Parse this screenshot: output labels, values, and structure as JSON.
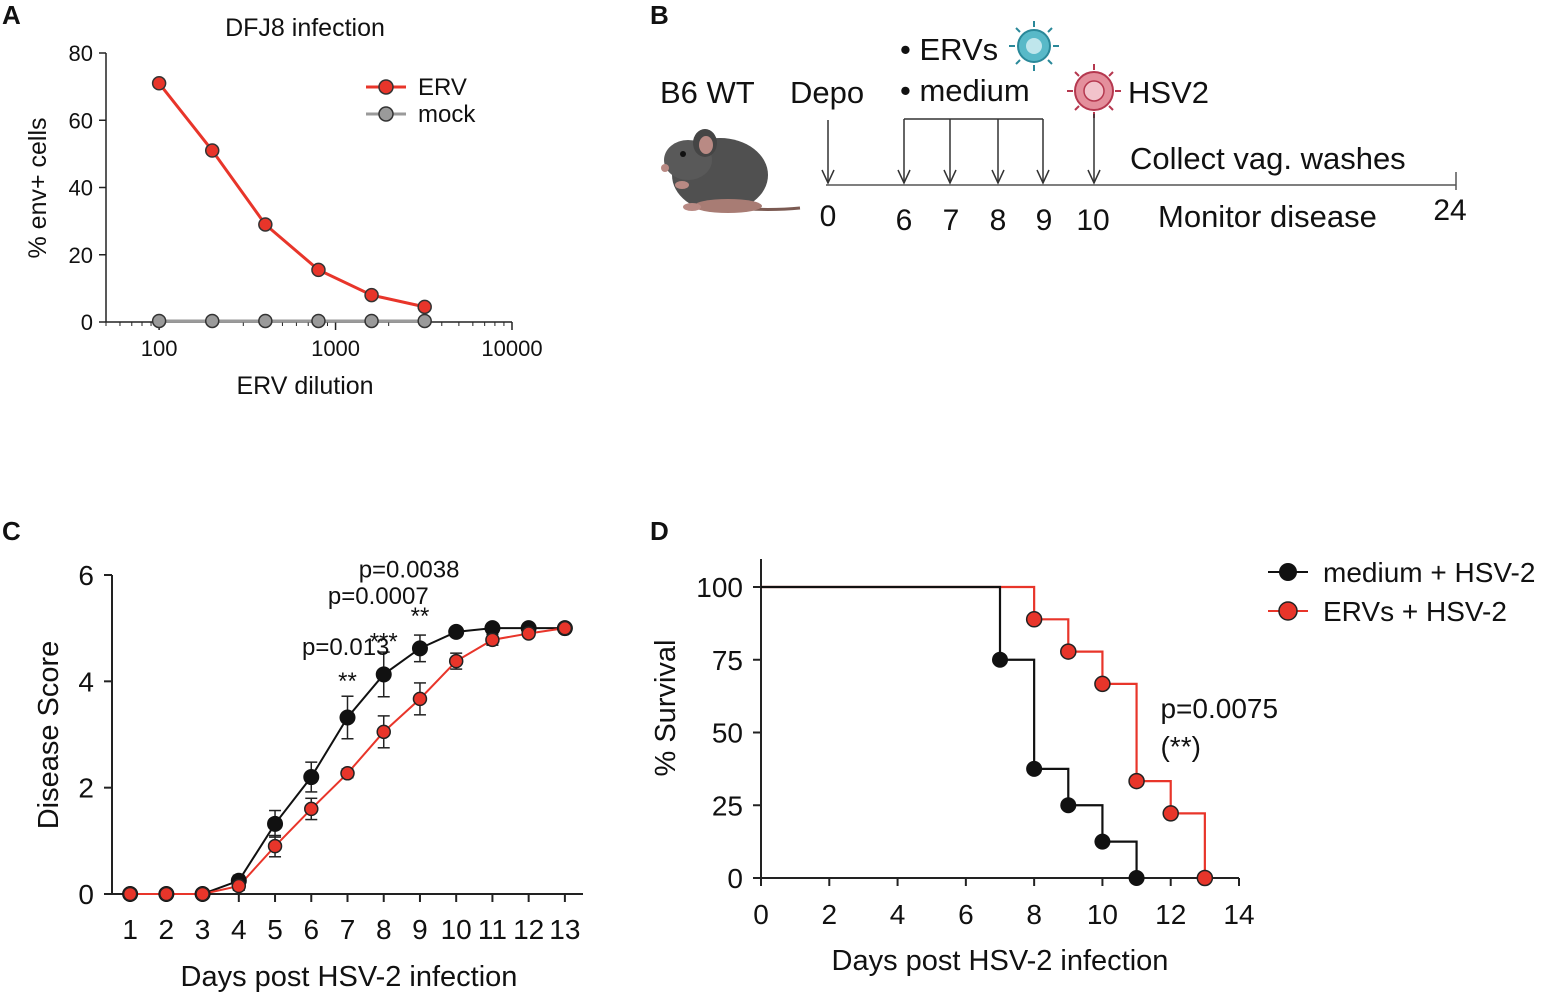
{
  "panels": {
    "A": {
      "label": "A"
    },
    "B": {
      "label": "B"
    },
    "C": {
      "label": "C"
    },
    "D": {
      "label": "D"
    }
  },
  "chart_data": [
    {
      "panel": "A",
      "type": "line",
      "title": "DFJ8 infection",
      "xlabel": "ERV dilution",
      "ylabel": "% env+ cells",
      "xscale": "log",
      "xlim": [
        50,
        10000
      ],
      "ylim": [
        0,
        80
      ],
      "xticks": [
        100,
        1000,
        10000
      ],
      "xtick_labels": [
        "100",
        "1000",
        "10000"
      ],
      "yticks": [
        0,
        20,
        40,
        60,
        80
      ],
      "ytick_labels": [
        "0",
        "20",
        "40",
        "60",
        "80"
      ],
      "legend": "top-right",
      "series": [
        {
          "name": "ERV",
          "color": "#e8352a",
          "x": [
            100,
            200,
            400,
            800,
            1600,
            3200
          ],
          "y": [
            71,
            51,
            29,
            15.5,
            8,
            4.5
          ]
        },
        {
          "name": "mock",
          "color": "#9a9a9a",
          "x": [
            100,
            200,
            400,
            800,
            1600,
            3200
          ],
          "y": [
            0.3,
            0.3,
            0.3,
            0.3,
            0.3,
            0.3
          ]
        }
      ]
    },
    {
      "panel": "C",
      "type": "line",
      "title": "",
      "xlabel": "Days post HSV-2 infection",
      "ylabel": "Disease Score",
      "xlim": [
        0.5,
        13.5
      ],
      "ylim": [
        0,
        6
      ],
      "xticks": [
        1,
        2,
        3,
        4,
        5,
        6,
        7,
        8,
        9,
        10,
        11,
        12,
        13
      ],
      "xtick_labels": [
        "1",
        "2",
        "3",
        "4",
        "5",
        "6",
        "7",
        "8",
        "9",
        "10",
        "11",
        "12",
        "13"
      ],
      "yticks": [
        0,
        2,
        4,
        6
      ],
      "ytick_labels": [
        "0",
        "2",
        "4",
        "6"
      ],
      "series": [
        {
          "name": "medium + HSV-2",
          "color": "#111111",
          "x": [
            1,
            2,
            3,
            4,
            5,
            6,
            7,
            8,
            9,
            10,
            11,
            12,
            13
          ],
          "y": [
            0,
            0,
            0,
            0.25,
            1.32,
            2.2,
            3.32,
            4.13,
            4.62,
            4.93,
            5,
            5,
            5
          ],
          "err": [
            0,
            0,
            0,
            0.1,
            0.25,
            0.28,
            0.4,
            0.42,
            0.25,
            0.07,
            0,
            0,
            0
          ]
        },
        {
          "name": "ERVs + HSV-2",
          "color": "#e8352a",
          "x": [
            1,
            2,
            3,
            4,
            5,
            6,
            7,
            8,
            9,
            10,
            11,
            12,
            13
          ],
          "y": [
            0,
            0,
            0,
            0.15,
            0.9,
            1.6,
            2.27,
            3.05,
            3.67,
            4.38,
            4.78,
            4.9,
            5
          ],
          "err": [
            0,
            0,
            0,
            0.08,
            0.2,
            0.2,
            0.08,
            0.3,
            0.3,
            0.15,
            0.1,
            0.05,
            0
          ]
        }
      ],
      "annotations": [
        {
          "text": "p=0.0038",
          "x": 8.7,
          "y": 5.95
        },
        {
          "text": "p=0.0007",
          "x": 7.85,
          "y": 5.45
        },
        {
          "text": "**",
          "x": 9.0,
          "y": 5.08
        },
        {
          "text": "p=0.013",
          "x": 6.95,
          "y": 4.5
        },
        {
          "text": "***",
          "x": 8.0,
          "y": 4.6
        },
        {
          "text": "**",
          "x": 7.0,
          "y": 3.86
        }
      ]
    },
    {
      "panel": "D",
      "type": "line",
      "title": "",
      "xlabel": "Days post HSV-2 infection",
      "ylabel": "% Survival",
      "xlim": [
        0,
        14
      ],
      "ylim": [
        0,
        100
      ],
      "xticks": [
        0,
        2,
        4,
        6,
        8,
        10,
        12,
        14
      ],
      "xtick_labels": [
        "0",
        "2",
        "4",
        "6",
        "8",
        "10",
        "12",
        "14"
      ],
      "yticks": [
        0,
        25,
        50,
        75,
        100
      ],
      "ytick_labels": [
        "0",
        "25",
        "50",
        "75",
        "100"
      ],
      "legend": "top-right",
      "series": [
        {
          "name": "medium + HSV-2",
          "color": "#111111",
          "steps": [
            [
              0,
              100
            ],
            [
              7,
              100
            ],
            [
              7,
              75
            ],
            [
              8,
              75
            ],
            [
              8,
              37.5
            ],
            [
              9,
              37.5
            ],
            [
              9,
              25
            ],
            [
              10,
              25
            ],
            [
              10,
              12.5
            ],
            [
              11,
              12.5
            ],
            [
              11,
              0
            ]
          ],
          "markers": [
            [
              7,
              75
            ],
            [
              8,
              37.5
            ],
            [
              9,
              25
            ],
            [
              10,
              12.5
            ],
            [
              11,
              0
            ]
          ]
        },
        {
          "name": "ERVs + HSV-2",
          "color": "#e8352a",
          "steps": [
            [
              0,
              100
            ],
            [
              8,
              100
            ],
            [
              8,
              88.9
            ],
            [
              9,
              88.9
            ],
            [
              9,
              77.8
            ],
            [
              10,
              77.8
            ],
            [
              10,
              66.7
            ],
            [
              11,
              66.7
            ],
            [
              11,
              33.3
            ],
            [
              12,
              33.3
            ],
            [
              12,
              22.2
            ],
            [
              13,
              22.2
            ],
            [
              13,
              0
            ]
          ],
          "markers": [
            [
              8,
              88.9
            ],
            [
              9,
              77.8
            ],
            [
              10,
              66.7
            ],
            [
              11,
              33.3
            ],
            [
              12,
              22.2
            ],
            [
              13,
              0
            ]
          ]
        }
      ],
      "annotations": [
        {
          "text": "p=0.0075",
          "x": 11.7,
          "y": 55
        },
        {
          "text": "(**)",
          "x": 11.7,
          "y": 42
        }
      ]
    }
  ],
  "schedule": {
    "mouse_label": "B6 WT",
    "depo_label": "Depo",
    "bullet_1": "• ERVs",
    "bullet_2": "• medium",
    "virus_label": "HSV2",
    "collect_label": "Collect vag. washes",
    "monitor_label": "Monitor disease",
    "days": [
      "0",
      "6",
      "7",
      "8",
      "9",
      "10",
      "24"
    ]
  }
}
